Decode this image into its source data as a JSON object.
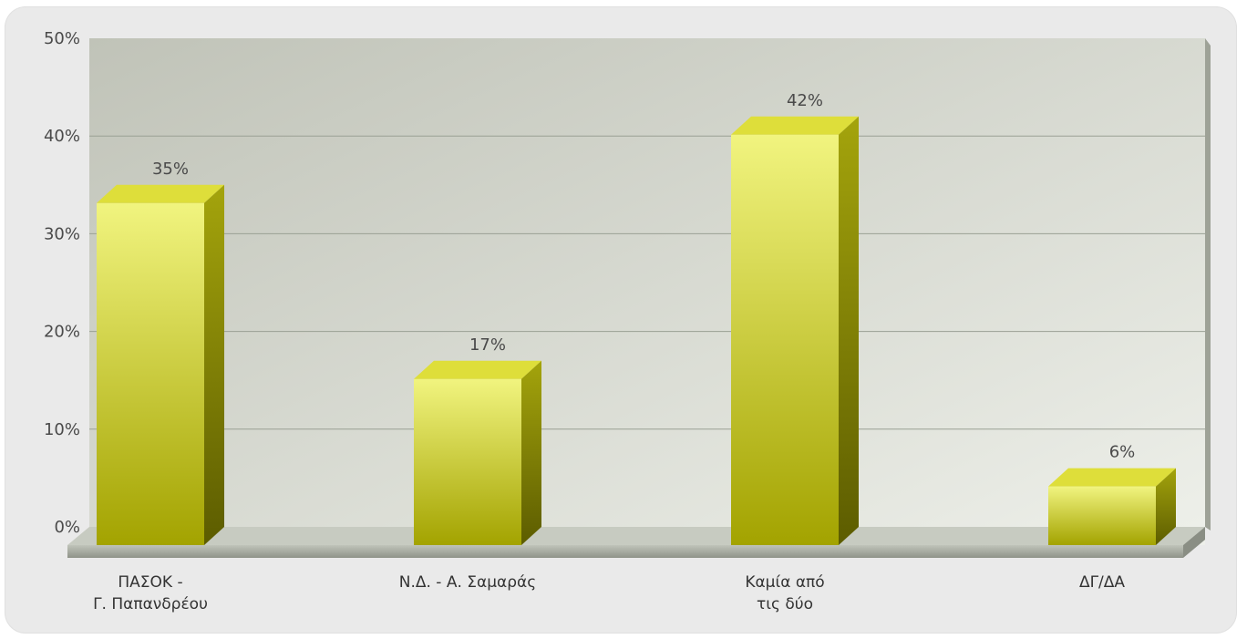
{
  "chart_data": {
    "type": "bar",
    "title": "",
    "xlabel": "",
    "ylabel": "",
    "categories": [
      [
        "ΠΑΣΟΚ -",
        "Γ. Παπανδρέου"
      ],
      [
        "Ν.Δ. - Α. Σαμαράς"
      ],
      [
        "Καμία από",
        "τις δύο"
      ],
      [
        "ΔΓ/ΔΑ"
      ]
    ],
    "values": [
      35,
      17,
      42,
      6
    ],
    "value_labels": [
      "35%",
      "17%",
      "42%",
      "6%"
    ],
    "ylim": [
      0,
      50
    ],
    "yticks": [
      "0%",
      "10%",
      "20%",
      "30%",
      "40%",
      "50%"
    ],
    "grid": true,
    "legend": "none",
    "colors": {
      "bar_front_light": "#eef27a",
      "bar_front_dark": "#a6a600",
      "bar_top": "#e0e040",
      "bar_side": "#7d7d00",
      "plot_bg_top": "#c3c6bc",
      "plot_bg_bottom": "#eef0ea",
      "floor": "#a9ada3"
    }
  }
}
